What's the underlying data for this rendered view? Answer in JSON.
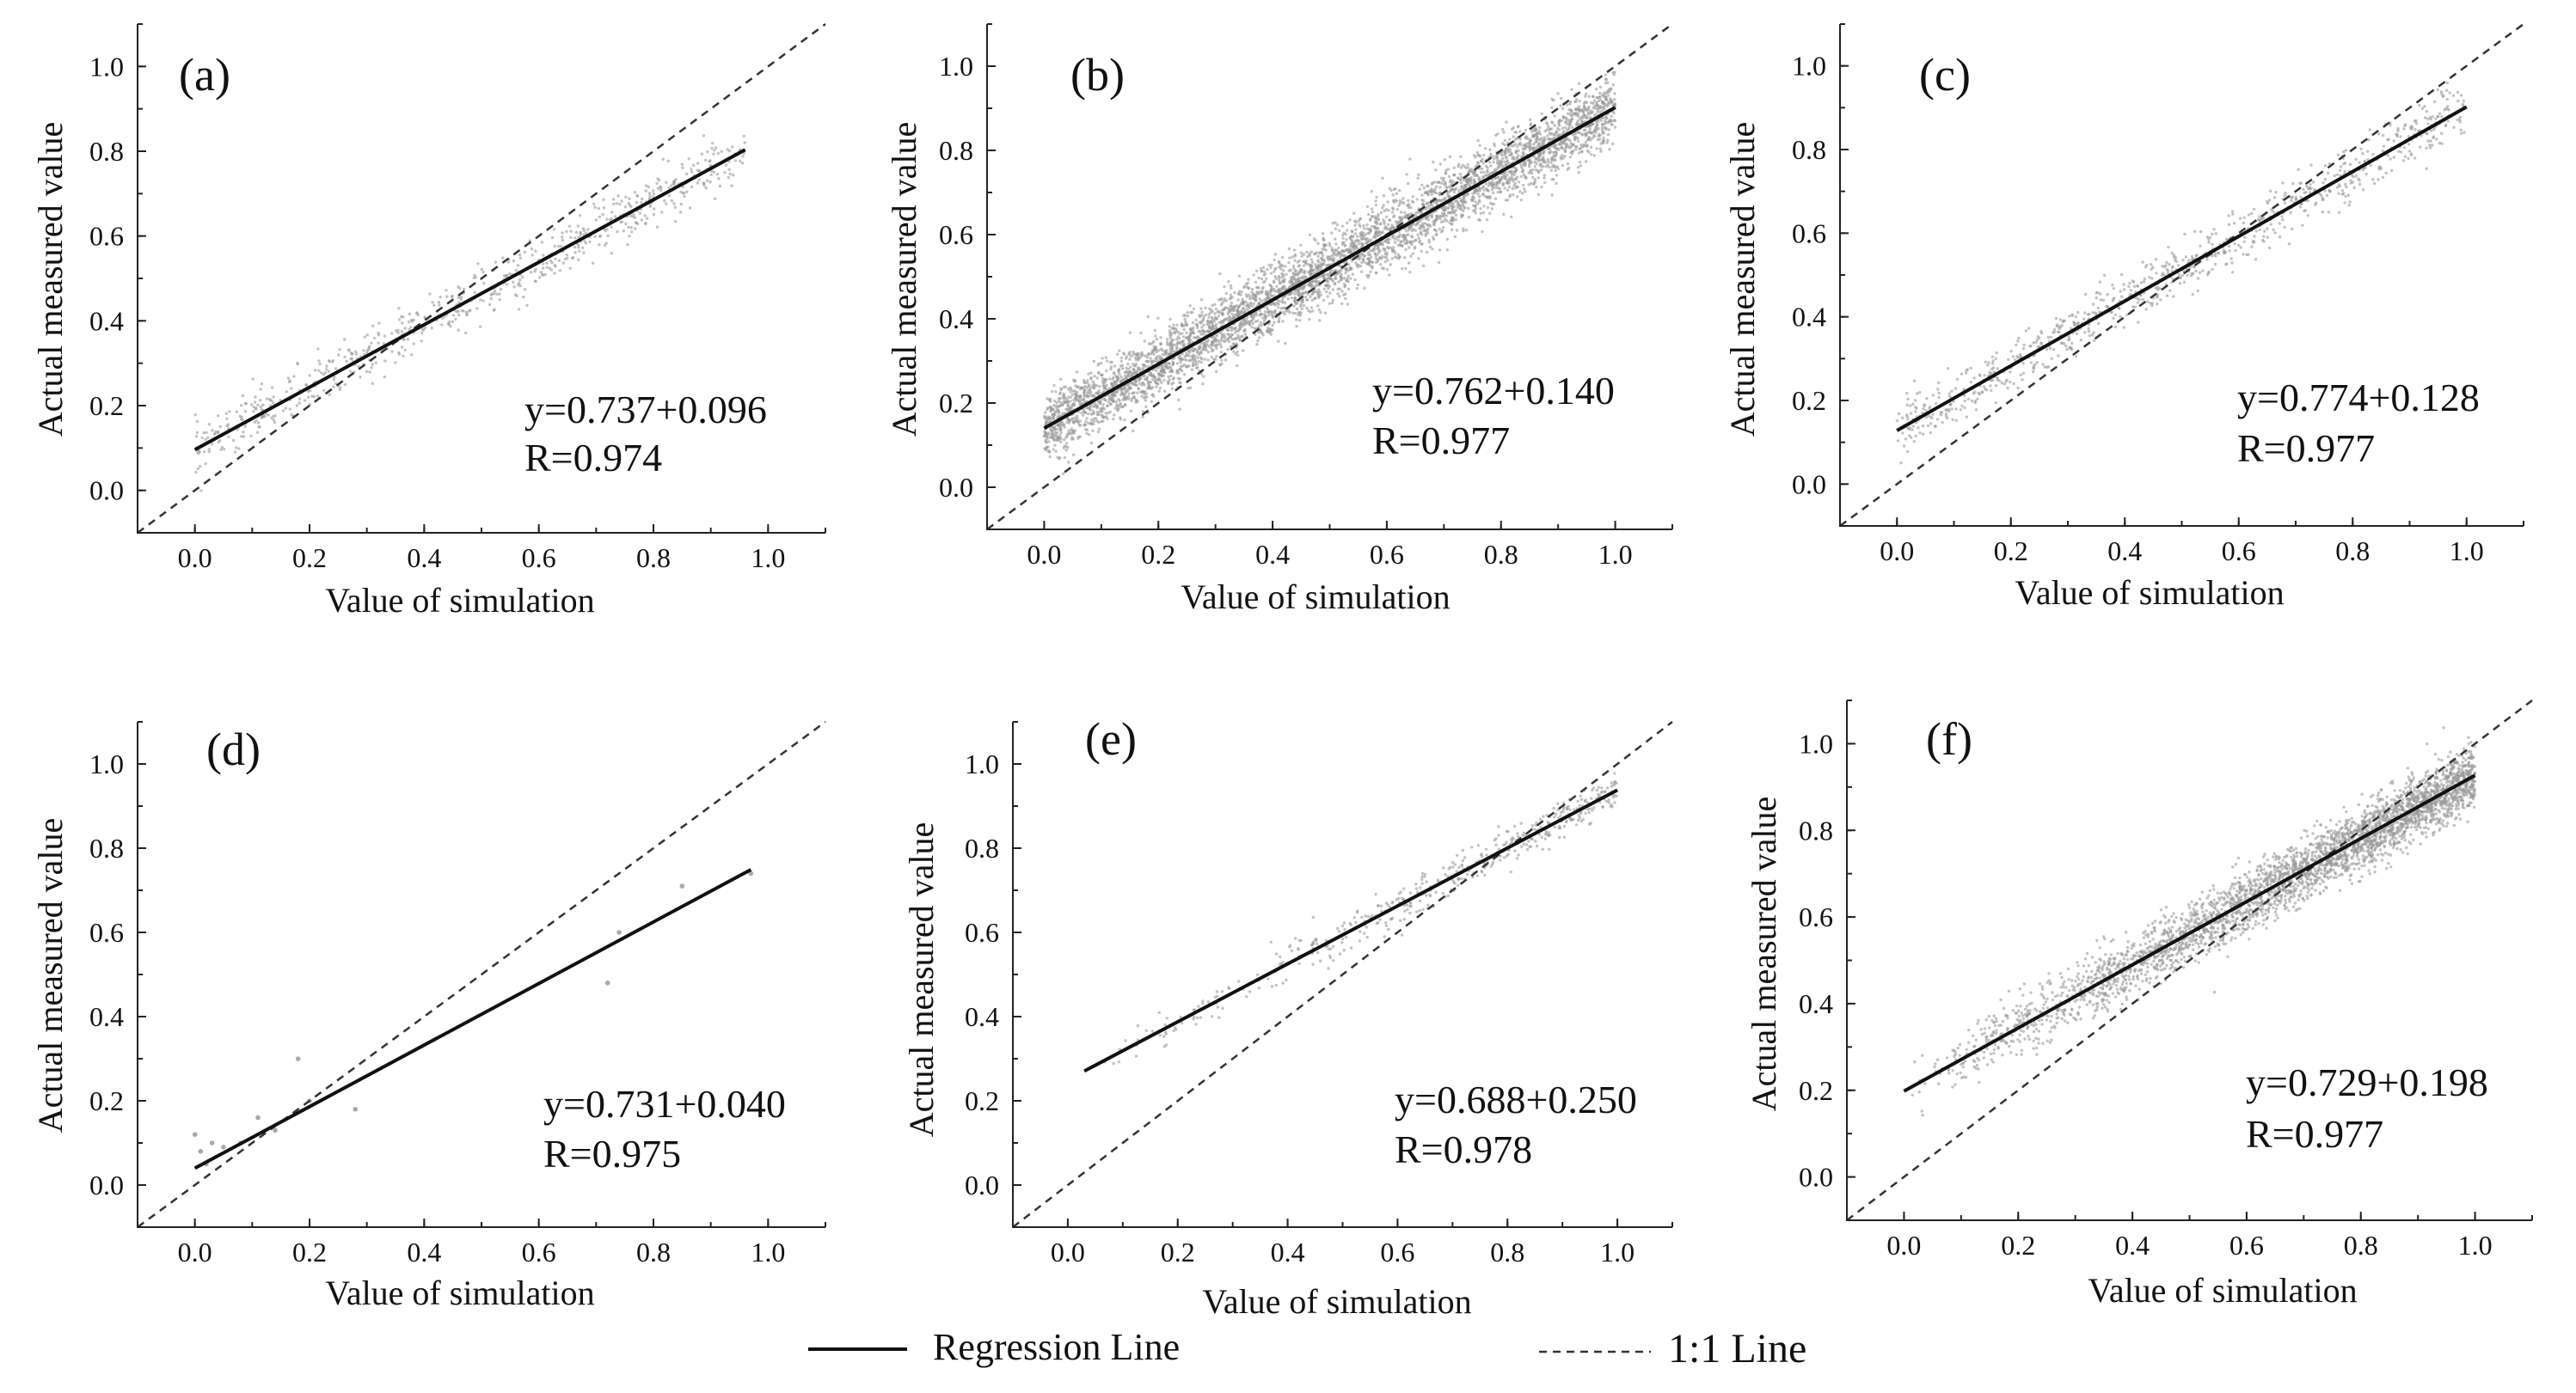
{
  "legend": {
    "regression_label": "Regression Line",
    "one_to_one_label": "1:1 Line"
  },
  "colors": {
    "scatter": "#9a9a9a",
    "regression": "#111111",
    "diagonal": "#333333"
  },
  "chart_data": [
    {
      "type": "scatter",
      "panel_label": "(a)",
      "xlabel": "Value of simulation",
      "ylabel": "Actual measured value",
      "xlim": [
        -0.1,
        1.1
      ],
      "ylim": [
        -0.1,
        1.1
      ],
      "xticks": [
        "0.0",
        "0.2",
        "0.4",
        "0.6",
        "0.8",
        "1.0"
      ],
      "yticks": [
        "0.0",
        "0.2",
        "0.4",
        "0.6",
        "0.8",
        "1.0"
      ],
      "equation": "y=0.737+0.096",
      "r_text": "R=0.974",
      "regression": {
        "slope": 0.737,
        "intercept": 0.096,
        "x_range": [
          0.0,
          0.96
        ]
      },
      "scatter": {
        "n": 700,
        "x_range": [
          0.0,
          0.96
        ],
        "spread": 0.03
      }
    },
    {
      "type": "scatter",
      "panel_label": "(b)",
      "xlabel": "Value of simulation",
      "ylabel": "Actual measured value",
      "xlim": [
        -0.1,
        1.1
      ],
      "ylim": [
        -0.1,
        1.1
      ],
      "xticks": [
        "0.0",
        "0.2",
        "0.4",
        "0.6",
        "0.8",
        "1.0"
      ],
      "yticks": [
        "0.0",
        "0.2",
        "0.4",
        "0.6",
        "0.8",
        "1.0"
      ],
      "equation": "y=0.762+0.140",
      "r_text": "R=0.977",
      "regression": {
        "slope": 0.762,
        "intercept": 0.14,
        "x_range": [
          0.0,
          1.0
        ]
      },
      "scatter": {
        "n": 4500,
        "x_range": [
          0.0,
          1.0
        ],
        "spread": 0.04
      }
    },
    {
      "type": "scatter",
      "panel_label": "(c)",
      "xlabel": "Value of simulation",
      "ylabel": "Actual measured value",
      "xlim": [
        -0.1,
        1.1
      ],
      "ylim": [
        -0.1,
        1.1
      ],
      "xticks": [
        "0.0",
        "0.2",
        "0.4",
        "0.6",
        "0.8",
        "1.0"
      ],
      "yticks": [
        "0.0",
        "0.2",
        "0.4",
        "0.6",
        "0.8",
        "1.0"
      ],
      "equation": "y=0.774+0.128",
      "r_text": "R=0.977",
      "regression": {
        "slope": 0.774,
        "intercept": 0.128,
        "x_range": [
          0.0,
          1.0
        ]
      },
      "scatter": {
        "n": 900,
        "x_range": [
          0.0,
          1.0
        ],
        "spread": 0.032
      }
    },
    {
      "type": "scatter",
      "panel_label": "(d)",
      "xlabel": "Value of simulation",
      "ylabel": "Actual measured value",
      "xlim": [
        -0.1,
        1.1
      ],
      "ylim": [
        -0.1,
        1.1
      ],
      "xticks": [
        "0.0",
        "0.2",
        "0.4",
        "0.6",
        "0.8",
        "1.0"
      ],
      "yticks": [
        "0.0",
        "0.2",
        "0.4",
        "0.6",
        "0.8",
        "1.0"
      ],
      "equation": "y=0.731+0.040",
      "r_text": "R=0.975",
      "regression": {
        "slope": 0.731,
        "intercept": 0.04,
        "x_range": [
          0.0,
          0.97
        ]
      },
      "scatter": {
        "points": [
          [
            0.0,
            0.12
          ],
          [
            0.01,
            0.08
          ],
          [
            0.02,
            0.05
          ],
          [
            0.03,
            0.1
          ],
          [
            0.05,
            0.09
          ],
          [
            0.08,
            0.1
          ],
          [
            0.11,
            0.16
          ],
          [
            0.14,
            0.13
          ],
          [
            0.18,
            0.3
          ],
          [
            0.2,
            0.2
          ],
          [
            0.28,
            0.18
          ],
          [
            0.72,
            0.48
          ],
          [
            0.74,
            0.6
          ],
          [
            0.85,
            0.71
          ],
          [
            0.97,
            0.74
          ]
        ]
      }
    },
    {
      "type": "scatter",
      "panel_label": "(e)",
      "xlabel": "Value of simulation",
      "ylabel": "Actual measured value",
      "xlim": [
        -0.1,
        1.1
      ],
      "ylim": [
        -0.1,
        1.1
      ],
      "xticks": [
        "0.0",
        "0.2",
        "0.4",
        "0.6",
        "0.8",
        "1.0"
      ],
      "yticks": [
        "0.0",
        "0.2",
        "0.4",
        "0.6",
        "0.8",
        "1.0"
      ],
      "equation": "y=0.688+0.250",
      "r_text": "R=0.978",
      "regression": {
        "slope": 0.688,
        "intercept": 0.25,
        "x_range": [
          0.03,
          1.0
        ]
      },
      "scatter": {
        "n": 500,
        "x_range": [
          0.03,
          1.0
        ],
        "spread": 0.022,
        "skew_high": true
      }
    },
    {
      "type": "scatter",
      "panel_label": "(f)",
      "xlabel": "Value of simulation",
      "ylabel": "Actual measured value",
      "xlim": [
        -0.1,
        1.1
      ],
      "ylim": [
        -0.1,
        1.1
      ],
      "xticks": [
        "0.0",
        "0.2",
        "0.4",
        "0.6",
        "0.8",
        "1.0"
      ],
      "yticks": [
        "0.0",
        "0.2",
        "0.4",
        "0.6",
        "0.8",
        "1.0"
      ],
      "equation": "y=0.729+0.198",
      "r_text": "R=0.977",
      "regression": {
        "slope": 0.729,
        "intercept": 0.198,
        "x_range": [
          0.0,
          1.0
        ]
      },
      "scatter": {
        "n": 3500,
        "x_range": [
          0.0,
          1.0
        ],
        "spread": 0.035,
        "skew_high": true
      }
    }
  ]
}
